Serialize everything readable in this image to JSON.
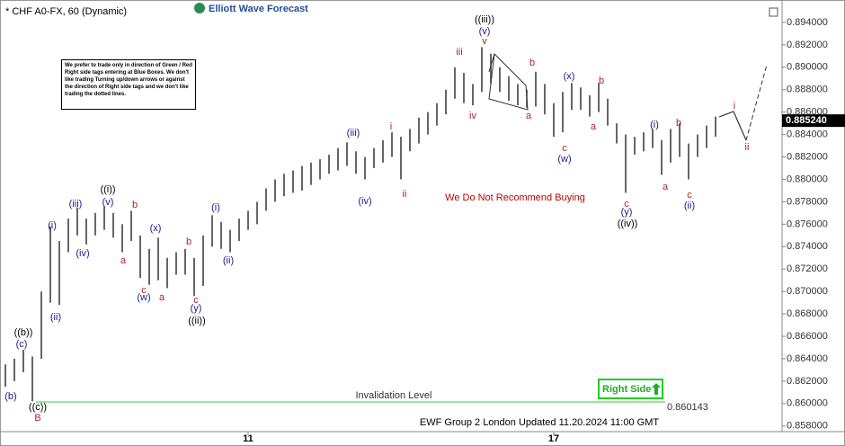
{
  "chart_data": {
    "type": "ohlc",
    "title": "* CHF A0-FX, 60 (Dynamic)",
    "brand": "Elliott Wave Forecast",
    "note": "We prefer to trade only in direction of Green / Red Right side tags entering at Blue Boxes. We don't like trading Turning up/down arrows or against the direction of Right side tags and we don't like trading the dotted lines.",
    "warning": "We Do Not Recommend Buying",
    "footer": "EWF Group 2 London Updated 11.20.2024 11:00 GMT",
    "right_side": "Right Side",
    "color": "#333333",
    "categories": [
      null,
      null,
      null,
      null,
      null,
      null,
      null,
      null,
      null,
      null,
      null,
      null,
      null,
      null,
      null,
      null,
      null,
      null,
      null,
      null,
      null,
      null,
      null,
      null,
      null,
      null,
      null,
      "11",
      null,
      null,
      null,
      null,
      null,
      null,
      null,
      null,
      null,
      null,
      null,
      null,
      null,
      null,
      null,
      null,
      null,
      null,
      null,
      null,
      null,
      null,
      null,
      null,
      null,
      null,
      null,
      null,
      null,
      null,
      null,
      null,
      null,
      "17",
      null,
      null,
      null,
      null,
      null,
      null,
      null,
      null,
      null,
      null,
      null,
      null,
      null,
      null,
      null,
      null,
      null,
      null
    ],
    "high": [
      0.8635,
      0.864,
      0.8648,
      0.8642,
      0.87,
      0.8758,
      0.8745,
      0.8765,
      0.8775,
      0.8765,
      0.877,
      0.8776,
      0.877,
      0.876,
      0.8772,
      0.875,
      0.8738,
      0.8748,
      0.873,
      0.8735,
      0.8738,
      0.873,
      0.875,
      0.8768,
      0.8762,
      0.8755,
      0.8765,
      0.8772,
      0.878,
      0.8792,
      0.88,
      0.8805,
      0.8808,
      0.8812,
      0.8815,
      0.8818,
      0.8822,
      0.8828,
      0.8833,
      0.8825,
      0.882,
      0.8828,
      0.8835,
      0.8842,
      0.8838,
      0.8845,
      0.8855,
      0.886,
      0.8868,
      0.888,
      0.89,
      0.8895,
      0.8885,
      0.8918,
      0.8912,
      0.89,
      0.8892,
      0.8885,
      0.888,
      0.8896,
      0.8885,
      0.8868,
      0.8878,
      0.8886,
      0.8882,
      0.8875,
      0.8886,
      0.8872,
      0.885,
      0.884,
      0.8838,
      0.8842,
      0.8845,
      0.8835,
      0.8845,
      0.885,
      0.8832,
      0.884,
      0.8848,
      0.8856
    ],
    "low": [
      0.8615,
      0.862,
      0.8628,
      0.8602,
      0.864,
      0.869,
      0.8688,
      0.8735,
      0.875,
      0.8742,
      0.875,
      0.8755,
      0.8748,
      0.8735,
      0.8745,
      0.8712,
      0.8706,
      0.871,
      0.8703,
      0.8715,
      0.8715,
      0.8696,
      0.8705,
      0.874,
      0.8738,
      0.8735,
      0.8745,
      0.8755,
      0.876,
      0.8772,
      0.878,
      0.8785,
      0.8788,
      0.879,
      0.8795,
      0.88,
      0.8805,
      0.8808,
      0.8812,
      0.8805,
      0.88,
      0.881,
      0.8815,
      0.882,
      0.88,
      0.8825,
      0.8832,
      0.884,
      0.8848,
      0.8858,
      0.8872,
      0.8868,
      0.8866,
      0.8878,
      0.8885,
      0.8878,
      0.887,
      0.8866,
      0.8864,
      0.8865,
      0.8858,
      0.8838,
      0.8842,
      0.8862,
      0.8862,
      0.8856,
      0.886,
      0.8848,
      0.8832,
      0.8788,
      0.8822,
      0.8825,
      0.8828,
      0.8804,
      0.8815,
      0.882,
      0.88,
      0.882,
      0.8828,
      0.8838
    ],
    "ylim": [
      0.8575,
      0.896
    ],
    "yticks": [
      {
        "value": 0.858,
        "label": "0.858000"
      },
      {
        "value": 0.86,
        "label": "0.860000"
      },
      {
        "value": 0.862,
        "label": "0.862000"
      },
      {
        "value": 0.864,
        "label": "0.864000"
      },
      {
        "value": 0.866,
        "label": "0.866000"
      },
      {
        "value": 0.868,
        "label": "0.868000"
      },
      {
        "value": 0.87,
        "label": "0.870000"
      },
      {
        "value": 0.872,
        "label": "0.872000"
      },
      {
        "value": 0.874,
        "label": "0.874000"
      },
      {
        "value": 0.876,
        "label": "0.876000"
      },
      {
        "value": 0.878,
        "label": "0.878000"
      },
      {
        "value": 0.88,
        "label": "0.880000"
      },
      {
        "value": 0.882,
        "label": "0.882000"
      },
      {
        "value": 0.884,
        "label": "0.884000"
      },
      {
        "value": 0.886,
        "label": "0.886000"
      },
      {
        "value": 0.888,
        "label": "0.888000"
      },
      {
        "value": 0.89,
        "label": "0.890000"
      },
      {
        "value": 0.892,
        "label": "0.892000"
      },
      {
        "value": 0.894,
        "label": "0.894000"
      }
    ],
    "last_price": {
      "value": 0.88524,
      "label": "0.885240"
    },
    "invalidation": {
      "value": 0.860143,
      "label": "Invalidation Level",
      "color": "#33cc33"
    },
    "annotations": [
      {
        "text": "(b)",
        "color": "#1a1a8c"
      },
      {
        "text": "(c)",
        "color": "#1a1a8c"
      },
      {
        "text": "((b))",
        "color": "#000000"
      },
      {
        "text": "((c))",
        "color": "#000000"
      },
      {
        "text": "B",
        "color": "#b22222"
      },
      {
        "text": "(i)",
        "color": "#1a1a8c"
      },
      {
        "text": "(ii)",
        "color": "#1a1a8c"
      },
      {
        "text": "(iii)",
        "color": "#1a1a8c"
      },
      {
        "text": "(iv)",
        "color": "#1a1a8c"
      },
      {
        "text": "((i))",
        "color": "#000000"
      },
      {
        "text": "(v)",
        "color": "#1a1a8c"
      },
      {
        "text": "a",
        "color": "#b22222"
      },
      {
        "text": "b",
        "color": "#b22222"
      },
      {
        "text": "c",
        "color": "#b22222"
      },
      {
        "text": "(w)",
        "color": "#1a1a8c"
      },
      {
        "text": "(x)",
        "color": "#1a1a8c"
      },
      {
        "text": "a",
        "color": "#b22222"
      },
      {
        "text": "b",
        "color": "#b22222"
      },
      {
        "text": "c",
        "color": "#b22222"
      },
      {
        "text": "(y)",
        "color": "#1a1a8c"
      },
      {
        "text": "((ii))",
        "color": "#000000"
      },
      {
        "text": "(i)",
        "color": "#1a1a8c"
      },
      {
        "text": "(ii)",
        "color": "#1a1a8c"
      },
      {
        "text": "(iii)",
        "color": "#1a1a8c"
      },
      {
        "text": "(iv)",
        "color": "#1a1a8c"
      },
      {
        "text": "i",
        "color": "#b22222"
      },
      {
        "text": "ii",
        "color": "#b22222"
      },
      {
        "text": "iii",
        "color": "#b22222"
      },
      {
        "text": "iv",
        "color": "#b22222"
      },
      {
        "text": "((iii))",
        "color": "#000000"
      },
      {
        "text": "(v)",
        "color": "#1a1a8c"
      },
      {
        "text": "v",
        "color": "#b22222"
      },
      {
        "text": "b",
        "color": "#b22222"
      },
      {
        "text": "a",
        "color": "#b22222"
      },
      {
        "text": "(x)",
        "color": "#1a1a8c"
      },
      {
        "text": "c",
        "color": "#b22222"
      },
      {
        "text": "(w)",
        "color": "#1a1a8c"
      },
      {
        "text": "b",
        "color": "#b22222"
      },
      {
        "text": "a",
        "color": "#b22222"
      },
      {
        "text": "c",
        "color": "#b22222"
      },
      {
        "text": "(y)",
        "color": "#1a1a8c"
      },
      {
        "text": "((iv))",
        "color": "#000000"
      },
      {
        "text": "(i)",
        "color": "#1a1a8c"
      },
      {
        "text": "b",
        "color": "#b22222"
      },
      {
        "text": "a",
        "color": "#b22222"
      },
      {
        "text": "c",
        "color": "#b22222"
      },
      {
        "text": "(ii)",
        "color": "#1a1a8c"
      },
      {
        "text": "i",
        "color": "#b22222"
      },
      {
        "text": "ii",
        "color": "#b22222"
      }
    ]
  }
}
